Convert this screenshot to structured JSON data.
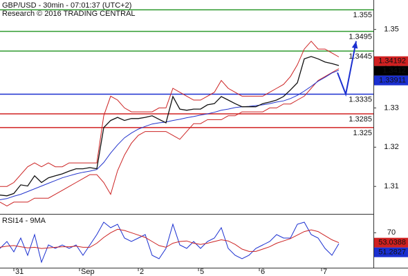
{
  "chart_data": [
    {
      "type": "line",
      "title": "GBP/USD - 30min - 07:01:37 (UTC+2)",
      "subtitle": "Research © 2016 TRADING CENTRAL",
      "x": [
        0,
        1,
        2,
        3,
        4,
        5,
        6,
        7,
        8,
        9,
        10,
        11,
        12,
        13,
        14,
        15,
        16,
        17,
        18,
        19,
        20,
        21,
        22,
        23,
        24,
        25,
        26,
        27,
        28,
        29,
        30,
        31,
        32,
        33,
        34,
        35,
        36,
        37,
        38,
        39,
        40,
        41,
        42,
        43,
        44,
        45,
        46,
        47,
        48,
        49
      ],
      "xlim": [
        0,
        54
      ],
      "ylim": [
        1.303,
        1.3575
      ],
      "yticks": [
        1.31,
        1.32,
        1.33,
        1.34,
        1.35
      ],
      "series": [
        {
          "color": "#cc2222",
          "values": [
            1.31,
            1.31,
            1.311,
            1.313,
            1.315,
            1.316,
            1.315,
            1.316,
            1.315,
            1.315,
            1.316,
            1.316,
            1.316,
            1.316,
            1.316,
            1.328,
            1.333,
            1.332,
            1.33,
            1.329,
            1.329,
            1.329,
            1.329,
            1.33,
            1.33,
            1.335,
            1.334,
            1.333,
            1.332,
            1.332,
            1.333,
            1.334,
            1.337,
            1.335,
            1.334,
            1.333,
            1.333,
            1.333,
            1.333,
            1.334,
            1.335,
            1.336,
            1.338,
            1.341,
            1.345,
            1.347,
            1.345,
            1.345,
            1.344,
            1.343
          ]
        },
        {
          "color": "#cc2222",
          "values": [
            1.306,
            1.305,
            1.306,
            1.306,
            1.306,
            1.307,
            1.307,
            1.307,
            1.308,
            1.309,
            1.31,
            1.311,
            1.312,
            1.313,
            1.313,
            1.311,
            1.308,
            1.314,
            1.318,
            1.321,
            1.323,
            1.324,
            1.324,
            1.324,
            1.324,
            1.323,
            1.322,
            1.324,
            1.326,
            1.326,
            1.327,
            1.327,
            1.327,
            1.328,
            1.328,
            1.329,
            1.329,
            1.329,
            1.329,
            1.33,
            1.33,
            1.331,
            1.331,
            1.332,
            1.333,
            1.335,
            1.337,
            1.338,
            1.339,
            1.34
          ]
        },
        {
          "color": "#2233cc",
          "values": [
            1.3066,
            1.3069,
            1.3075,
            1.308,
            1.3087,
            1.3094,
            1.3101,
            1.3108,
            1.3115,
            1.3122,
            1.3127,
            1.3132,
            1.3136,
            1.3139,
            1.3143,
            1.3161,
            1.3185,
            1.3206,
            1.3224,
            1.3236,
            1.3246,
            1.3253,
            1.3259,
            1.3262,
            1.3264,
            1.3268,
            1.3271,
            1.3275,
            1.3278,
            1.3282,
            1.3285,
            1.3289,
            1.3294,
            1.3297,
            1.3301,
            1.3303,
            1.3304,
            1.3306,
            1.3308,
            1.3311,
            1.3315,
            1.3318,
            1.3324,
            1.3332,
            1.3343,
            1.3355,
            1.3368,
            1.3378,
            1.3389,
            1.3396
          ]
        },
        {
          "color": "#111111",
          "values": [
            1.3078,
            1.3076,
            1.3082,
            1.3104,
            1.3101,
            1.3127,
            1.311,
            1.3122,
            1.3127,
            1.3132,
            1.3139,
            1.3145,
            1.3145,
            1.3148,
            1.3145,
            1.325,
            1.3268,
            1.3276,
            1.3268,
            1.3273,
            1.3273,
            1.3276,
            1.328,
            1.3271,
            1.3262,
            1.3329,
            1.3297,
            1.3294,
            1.3297,
            1.3297,
            1.3308,
            1.3311,
            1.3329,
            1.332,
            1.3311,
            1.3303,
            1.3303,
            1.3303,
            1.3311,
            1.3315,
            1.332,
            1.3329,
            1.3346,
            1.3364,
            1.3425,
            1.3431,
            1.3425,
            1.3417,
            1.3413,
            1.3408
          ]
        }
      ],
      "projection": {
        "color": "#1a2fd0",
        "x": [
          48.8,
          50,
          51.5
        ],
        "values": [
          1.339,
          1.3335,
          1.347
        ]
      },
      "levels": [
        {
          "value": 1.355,
          "color": "#2e9a2e"
        },
        {
          "value": 1.3495,
          "color": "#2e9a2e"
        },
        {
          "value": 1.3445,
          "color": "#2e9a2e"
        },
        {
          "value": 1.3335,
          "color": "#1a2fd0"
        },
        {
          "value": 1.3285,
          "color": "#d02020"
        },
        {
          "value": 1.325,
          "color": "#d02020"
        }
      ],
      "price_tags": [
        {
          "value": 1.34192,
          "color": "#d02020"
        },
        {
          "value": 1.3412,
          "color": "#000000"
        },
        {
          "value": 1.33911,
          "color": "#1a2fd0"
        }
      ]
    },
    {
      "type": "line",
      "title": "RSI14 - 9MA",
      "x": [
        0,
        1,
        2,
        3,
        4,
        5,
        6,
        7,
        8,
        9,
        10,
        11,
        12,
        13,
        14,
        15,
        16,
        17,
        18,
        19,
        20,
        21,
        22,
        23,
        24,
        25,
        26,
        27,
        28,
        29,
        30,
        31,
        32,
        33,
        34,
        35,
        36,
        37,
        38,
        39,
        40,
        41,
        42,
        43,
        44,
        45,
        46,
        47,
        48,
        49
      ],
      "xlim": [
        0,
        54
      ],
      "xticks": [
        {
          "value": 2,
          "label": "31"
        },
        {
          "value": 11.5,
          "label": "Sep"
        },
        {
          "value": 20,
          "label": "2"
        },
        {
          "value": 28.7,
          "label": "5"
        },
        {
          "value": 37.5,
          "label": "6"
        },
        {
          "value": 46.5,
          "label": "7"
        }
      ],
      "ylim": [
        10,
        100
      ],
      "yticks": [
        70
      ],
      "series": [
        {
          "color": "#1a2fd0",
          "values": [
            43.2,
            55.0,
            37.2,
            60.9,
            31.3,
            66.8,
            19.5,
            49.1,
            43.2,
            49.1,
            43.2,
            49.1,
            31.3,
            49.1,
            66.8,
            88.2,
            78.7,
            84.6,
            60.9,
            55.0,
            60.9,
            66.8,
            31.3,
            25.4,
            43.2,
            84.6,
            49.1,
            43.2,
            55.0,
            43.2,
            55.0,
            60.9,
            78.7,
            43.2,
            31.3,
            25.4,
            31.3,
            43.2,
            49.1,
            55.0,
            66.8,
            60.9,
            60.9,
            84.6,
            88.2,
            66.8,
            60.9,
            43.2,
            31.3,
            51.3
          ]
        },
        {
          "color": "#cc2222",
          "values": [
            45,
            47,
            48,
            46,
            44,
            45,
            43,
            44,
            45,
            46,
            46,
            47,
            45,
            45,
            52,
            62,
            70,
            76,
            74,
            70,
            66,
            62,
            55,
            48,
            45,
            52,
            55,
            56,
            52,
            50,
            52,
            55,
            58,
            56,
            50,
            42,
            38,
            38,
            42,
            46,
            52,
            56,
            60,
            66,
            72,
            75,
            72,
            65,
            58,
            53
          ]
        }
      ],
      "price_tags": [
        {
          "value": 53.0388,
          "color": "#d02020"
        },
        {
          "value": 51.2827,
          "color": "#1a2fd0"
        }
      ]
    }
  ]
}
